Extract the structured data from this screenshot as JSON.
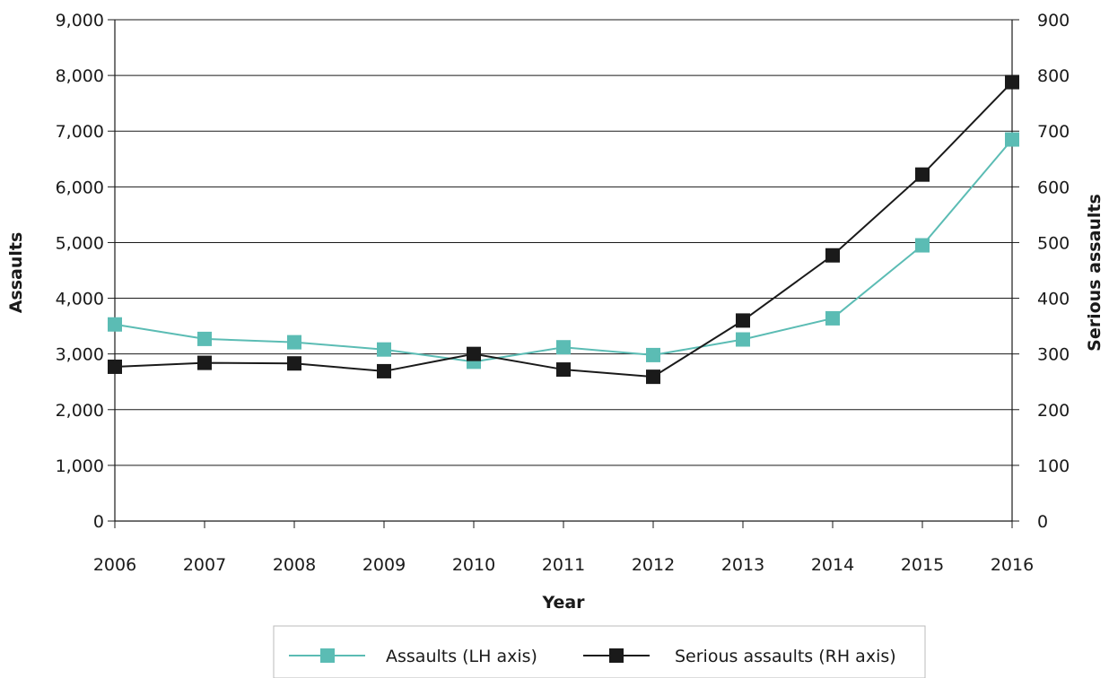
{
  "chart_data": {
    "type": "line",
    "xlabel": "Year",
    "ylabel_left": "Assaults",
    "ylabel_right": "Serious assaults",
    "categories": [
      "2006",
      "2007",
      "2008",
      "2009",
      "2010",
      "2011",
      "2012",
      "2013",
      "2014",
      "2015",
      "2016"
    ],
    "ylim_left": [
      0,
      9000
    ],
    "ylim_right": [
      0,
      900
    ],
    "yticks_left": [
      "0",
      "1,000",
      "2,000",
      "3,000",
      "4,000",
      "5,000",
      "6,000",
      "7,000",
      "8,000",
      "9,000"
    ],
    "yticks_right": [
      "0",
      "100",
      "200",
      "300",
      "400",
      "500",
      "600",
      "700",
      "800",
      "900"
    ],
    "grid": true,
    "legend_position": "bottom",
    "series": [
      {
        "name": "Assaults (LH axis)",
        "axis": "left",
        "color": "#5bbcb4",
        "marker": "square",
        "values": [
          3530,
          3270,
          3210,
          3080,
          2860,
          3120,
          2980,
          3260,
          3640,
          4950,
          6850
        ]
      },
      {
        "name": "Serious assaults (RH axis)",
        "axis": "right",
        "color": "#1a1a1a",
        "marker": "square",
        "values": [
          277,
          284,
          283,
          269,
          300,
          272,
          259,
          360,
          477,
          622,
          788
        ]
      }
    ]
  }
}
